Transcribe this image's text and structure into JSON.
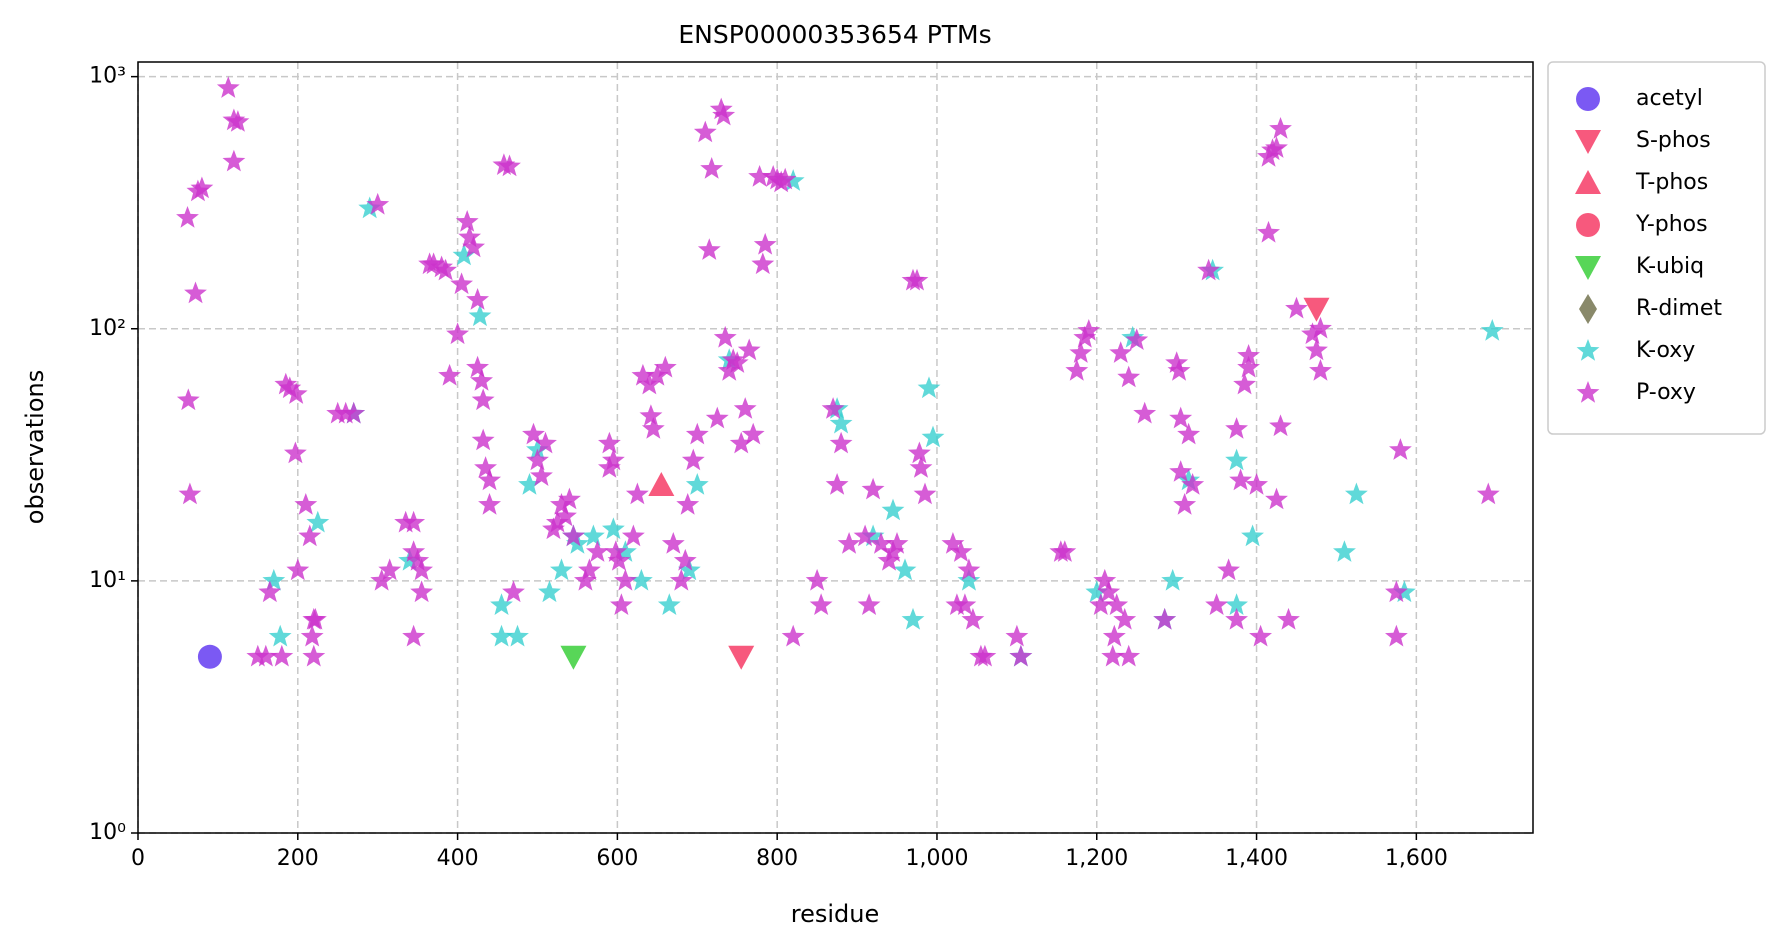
{
  "chart_data": {
    "type": "scatter",
    "title": "ENSP00000353654 PTMs",
    "x_label": "residue",
    "y_label": "observations",
    "xlim": [
      0,
      1746
    ],
    "ylim": [
      1,
      1143
    ],
    "y_scale": "log",
    "grid": true,
    "legend": "outside-right",
    "xticks": [
      0,
      200,
      400,
      600,
      800,
      {
        "value": 1000,
        "label": "1,000"
      },
      {
        "value": 1200,
        "label": "1,200"
      },
      {
        "value": 1400,
        "label": "1,400"
      },
      {
        "value": 1600,
        "label": "1,600"
      }
    ],
    "yticks": [
      {
        "value": 1,
        "label": "10⁰"
      },
      {
        "value": 10,
        "label": "10¹"
      },
      {
        "value": 100,
        "label": "10²"
      },
      {
        "value": 1000,
        "label": "10³"
      }
    ],
    "series": [
      {
        "name": "acetyl",
        "color": "#5a2ff0",
        "marker": "circle",
        "x": [
          90
        ],
        "values": [
          5
        ]
      },
      {
        "name": "S-phos",
        "color": "#f5305c",
        "marker": "triangle-down",
        "x": [
          1475,
          755
        ],
        "values": [
          120,
          5
        ]
      },
      {
        "name": "T-phos",
        "color": "#f5305c",
        "marker": "triangle-up",
        "x": [
          655
        ],
        "values": [
          24
        ]
      },
      {
        "name": "Y-phos",
        "color": "#f5305c",
        "marker": "circle",
        "x": [],
        "values": []
      },
      {
        "name": "K-ubiq",
        "color": "#2ecc2e",
        "marker": "triangle-down",
        "x": [
          545
        ],
        "values": [
          5
        ]
      },
      {
        "name": "R-dimet",
        "color": "#6b6b45",
        "marker": "diamond",
        "x": [],
        "values": []
      },
      {
        "name": "K-oxy",
        "color": "#38d0d0",
        "marker": "star",
        "x": [
          290,
          408,
          428,
          270,
          225,
          170,
          178,
          340,
          455,
          455,
          475,
          490,
          500,
          515,
          530,
          545,
          550,
          570,
          595,
          610,
          630,
          665,
          700,
          690,
          880,
          920,
          945,
          960,
          970,
          990,
          995,
          1040,
          1105,
          1200,
          1245,
          1285,
          1295,
          1315,
          1345,
          1375,
          1375,
          1395,
          1510,
          1525,
          1585,
          1695,
          740,
          820,
          875
        ],
        "values": [
          300,
          195,
          112,
          46,
          17,
          10,
          6,
          12,
          8,
          6,
          6,
          24,
          33,
          9,
          11,
          15,
          14,
          15,
          16,
          13,
          10,
          8,
          24,
          11,
          42,
          15,
          19,
          11,
          7,
          58,
          37,
          10,
          5,
          9,
          92,
          7,
          10,
          25,
          170,
          30,
          8,
          15,
          13,
          22,
          9,
          98,
          75,
          385,
          48
        ]
      },
      {
        "name": "P-oxy",
        "color": "#cc33cc",
        "marker": "star",
        "x": [
          62,
          63,
          65,
          72,
          75,
          80,
          113,
          120,
          125,
          120,
          150,
          160,
          165,
          180,
          185,
          190,
          198,
          197,
          200,
          210,
          215,
          220,
          222,
          218,
          220,
          250,
          260,
          270,
          300,
          305,
          315,
          335,
          345,
          345,
          350,
          345,
          355,
          355,
          365,
          370,
          380,
          385,
          390,
          400,
          405,
          412,
          415,
          420,
          425,
          425,
          430,
          432,
          432,
          435,
          440,
          440,
          458,
          465,
          470,
          495,
          500,
          505,
          510,
          520,
          525,
          530,
          535,
          540,
          545,
          560,
          565,
          575,
          590,
          590,
          595,
          598,
          602,
          605,
          610,
          620,
          625,
          632,
          640,
          642,
          645,
          650,
          660,
          670,
          680,
          685,
          688,
          695,
          700,
          710,
          718,
          715,
          725,
          735,
          730,
          733,
          740,
          745,
          750,
          755,
          760,
          765,
          770,
          778,
          785,
          782,
          795,
          800,
          805,
          810,
          820,
          850,
          855,
          870,
          875,
          880,
          890,
          910,
          915,
          920,
          930,
          940,
          945,
          950,
          970,
          975,
          978,
          980,
          985,
          1020,
          1030,
          1025,
          1035,
          1040,
          1045,
          1055,
          1060,
          1100,
          1105,
          1155,
          1160,
          1175,
          1180,
          1185,
          1190,
          1205,
          1210,
          1215,
          1220,
          1222,
          1225,
          1230,
          1235,
          1240,
          1240,
          1250,
          1260,
          1285,
          1300,
          1303,
          1305,
          1305,
          1310,
          1315,
          1320,
          1340,
          1350,
          1365,
          1375,
          1375,
          1380,
          1385,
          1390,
          1390,
          1400,
          1405,
          1415,
          1415,
          1420,
          1425,
          1430,
          1425,
          1430,
          1440,
          1450,
          1470,
          1475,
          1480,
          1480,
          1575,
          1575,
          1580,
          1690
        ],
        "values": [
          275,
          52,
          22,
          138,
          350,
          360,
          900,
          670,
          660,
          460,
          5,
          5,
          9,
          5,
          60,
          58,
          55,
          32,
          11,
          20,
          15,
          7,
          7,
          6,
          5,
          46,
          46,
          46,
          310,
          10,
          11,
          17,
          17,
          13,
          12,
          6,
          11,
          9,
          180,
          180,
          175,
          170,
          65,
          95,
          150,
          265,
          230,
          210,
          130,
          70,
          62,
          52,
          36,
          28,
          25,
          20,
          445,
          440,
          9,
          38,
          30,
          26,
          35,
          16,
          17,
          20,
          18,
          21,
          15,
          10,
          11,
          13,
          35,
          28,
          30,
          13,
          12,
          8,
          10,
          15,
          22,
          65,
          60,
          45,
          40,
          65,
          70,
          14,
          10,
          12,
          20,
          30,
          38,
          600,
          430,
          205,
          44,
          92,
          740,
          700,
          68,
          75,
          73,
          35,
          48,
          82,
          38,
          400,
          215,
          180,
          400,
          390,
          380,
          390,
          6,
          10,
          8,
          48,
          24,
          35,
          14,
          15,
          8,
          23,
          14,
          12,
          13,
          14,
          155,
          155,
          32,
          28,
          22,
          14,
          13,
          8,
          8,
          11,
          7,
          5,
          5,
          6,
          5,
          13,
          13,
          68,
          80,
          92,
          98,
          8,
          10,
          9,
          5,
          6,
          8,
          80,
          7,
          5,
          64,
          90,
          46,
          7,
          73,
          68,
          44,
          27,
          20,
          38,
          24,
          170,
          8,
          11,
          40,
          7,
          25,
          60,
          78,
          70,
          24,
          6,
          240,
          480,
          510,
          520,
          620,
          21,
          41,
          7,
          120,
          95,
          82,
          100,
          68,
          9,
          6,
          33,
          22
        ]
      }
    ]
  }
}
